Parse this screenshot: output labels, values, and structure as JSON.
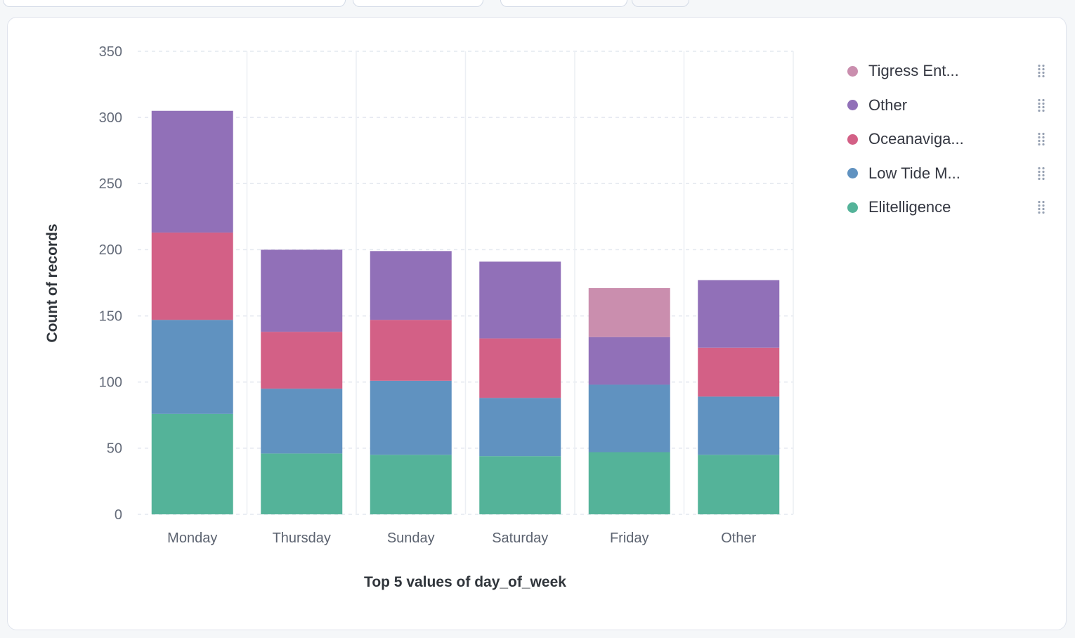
{
  "chart_data": {
    "type": "bar",
    "stacked": true,
    "title": "",
    "xlabel": "Top 5 values of day_of_week",
    "ylabel": "Count of records",
    "categories": [
      "Monday",
      "Thursday",
      "Sunday",
      "Saturday",
      "Friday",
      "Other"
    ],
    "series": [
      {
        "name": "Elitelligence",
        "color": "#54B399",
        "values": [
          76,
          46,
          45,
          44,
          47,
          45
        ]
      },
      {
        "name": "Low Tide M...",
        "color": "#6092C0",
        "values": [
          71,
          49,
          56,
          44,
          51,
          44
        ]
      },
      {
        "name": "Oceanaviga...",
        "color": "#D36086",
        "values": [
          66,
          43,
          46,
          45,
          0,
          37
        ]
      },
      {
        "name": "Other",
        "color": "#9170B8",
        "values": [
          92,
          62,
          52,
          58,
          36,
          51
        ]
      },
      {
        "name": "Tigress Ent...",
        "color": "#CA8EAE",
        "values": [
          0,
          0,
          0,
          0,
          37,
          0
        ]
      }
    ],
    "totals": [
      305,
      200,
      199,
      191,
      171,
      177
    ],
    "ylim": [
      0,
      350
    ],
    "yticks": [
      0,
      50,
      100,
      150,
      200,
      250,
      300,
      350
    ],
    "grid": true,
    "legend_position": "right"
  },
  "legend": {
    "items": [
      {
        "label": "Tigress Ent...",
        "color": "#CA8EAE"
      },
      {
        "label": "Other",
        "color": "#9170B8"
      },
      {
        "label": "Oceanaviga...",
        "color": "#D36086"
      },
      {
        "label": "Low Tide M...",
        "color": "#6092C0"
      },
      {
        "label": "Elitelligence",
        "color": "#54B399"
      }
    ]
  }
}
